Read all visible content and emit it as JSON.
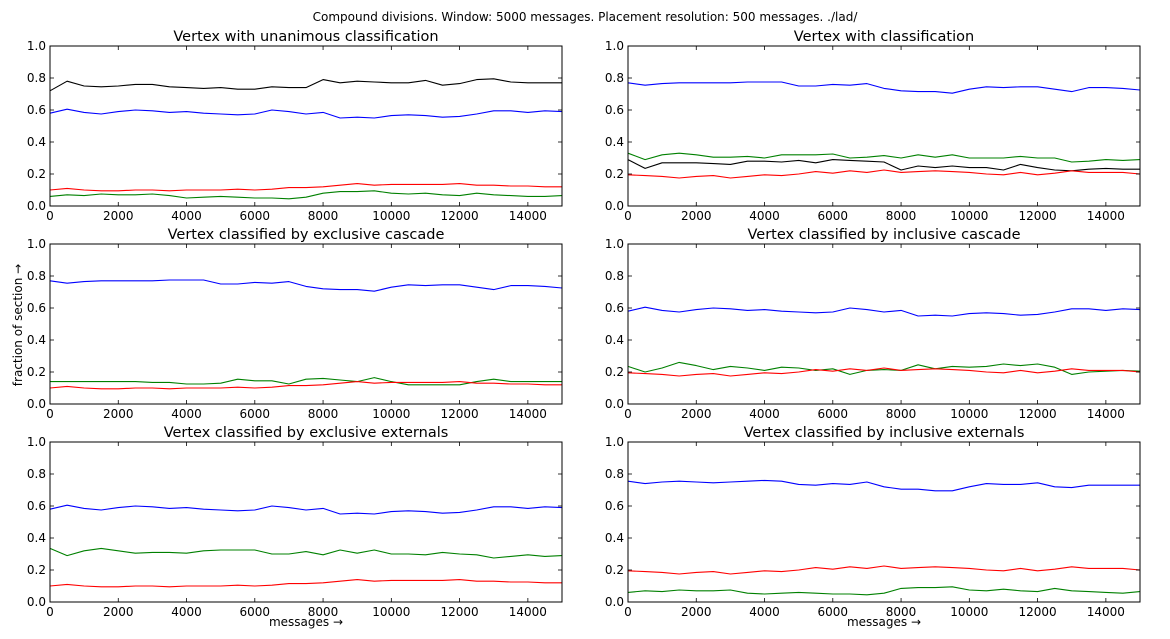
{
  "figure": {
    "suptitle": "Compound divisions. Window: 5000 messages. Placement resolution: 500 messages. ./lad/",
    "xlabel": "messages →",
    "ylabel": "fraction of section →"
  },
  "colors": {
    "blue": "#0000ff",
    "green": "#008000",
    "red": "#ff0000",
    "black": "#000000"
  },
  "chart_data": [
    {
      "type": "line",
      "title": "Vertex with unanimous classification",
      "xlim": [
        0,
        15000
      ],
      "ylim": [
        0,
        1.0
      ],
      "xticks": [
        0,
        2000,
        4000,
        6000,
        8000,
        10000,
        12000,
        14000
      ],
      "yticks": [
        0.0,
        0.2,
        0.4,
        0.6,
        0.8,
        1.0
      ],
      "x": [
        0,
        500,
        1000,
        1500,
        2000,
        2500,
        3000,
        3500,
        4000,
        4500,
        5000,
        5500,
        6000,
        6500,
        7000,
        7500,
        8000,
        8500,
        9000,
        9500,
        10000,
        10500,
        11000,
        11500,
        12000,
        12500,
        13000,
        13500,
        14000,
        14500,
        15000
      ],
      "series": [
        {
          "color": "#000000",
          "values": [
            0.72,
            0.78,
            0.75,
            0.745,
            0.75,
            0.76,
            0.76,
            0.745,
            0.74,
            0.735,
            0.74,
            0.73,
            0.73,
            0.745,
            0.74,
            0.74,
            0.79,
            0.77,
            0.78,
            0.775,
            0.77,
            0.77,
            0.785,
            0.755,
            0.765,
            0.79,
            0.795,
            0.775,
            0.77,
            0.77,
            0.77
          ]
        },
        {
          "color": "#0000ff",
          "values": [
            0.58,
            0.605,
            0.585,
            0.575,
            0.59,
            0.6,
            0.595,
            0.585,
            0.59,
            0.58,
            0.575,
            0.57,
            0.575,
            0.6,
            0.59,
            0.575,
            0.585,
            0.55,
            0.555,
            0.55,
            0.565,
            0.57,
            0.565,
            0.555,
            0.56,
            0.575,
            0.595,
            0.595,
            0.585,
            0.595,
            0.59
          ]
        },
        {
          "color": "#ff0000",
          "values": [
            0.1,
            0.11,
            0.1,
            0.095,
            0.095,
            0.1,
            0.1,
            0.095,
            0.1,
            0.1,
            0.1,
            0.105,
            0.1,
            0.105,
            0.115,
            0.115,
            0.12,
            0.13,
            0.14,
            0.13,
            0.135,
            0.135,
            0.135,
            0.135,
            0.14,
            0.13,
            0.13,
            0.125,
            0.125,
            0.12,
            0.12
          ]
        },
        {
          "color": "#008000",
          "values": [
            0.06,
            0.07,
            0.065,
            0.075,
            0.07,
            0.07,
            0.075,
            0.065,
            0.05,
            0.055,
            0.06,
            0.055,
            0.05,
            0.05,
            0.045,
            0.055,
            0.08,
            0.09,
            0.09,
            0.095,
            0.08,
            0.075,
            0.08,
            0.07,
            0.065,
            0.08,
            0.07,
            0.065,
            0.06,
            0.06,
            0.065
          ]
        }
      ]
    },
    {
      "type": "line",
      "title": "Vertex with classification",
      "xlim": [
        0,
        15000
      ],
      "ylim": [
        0,
        1.0
      ],
      "xticks": [
        0,
        2000,
        4000,
        6000,
        8000,
        10000,
        12000,
        14000
      ],
      "yticks": [
        0.0,
        0.2,
        0.4,
        0.6,
        0.8,
        1.0
      ],
      "x": [
        0,
        500,
        1000,
        1500,
        2000,
        2500,
        3000,
        3500,
        4000,
        4500,
        5000,
        5500,
        6000,
        6500,
        7000,
        7500,
        8000,
        8500,
        9000,
        9500,
        10000,
        10500,
        11000,
        11500,
        12000,
        12500,
        13000,
        13500,
        14000,
        14500,
        15000
      ],
      "series": [
        {
          "color": "#0000ff",
          "values": [
            0.77,
            0.755,
            0.765,
            0.77,
            0.77,
            0.77,
            0.77,
            0.775,
            0.775,
            0.775,
            0.75,
            0.75,
            0.76,
            0.755,
            0.765,
            0.735,
            0.72,
            0.715,
            0.715,
            0.705,
            0.73,
            0.745,
            0.74,
            0.745,
            0.745,
            0.73,
            0.715,
            0.74,
            0.74,
            0.735,
            0.725
          ]
        },
        {
          "color": "#008000",
          "values": [
            0.33,
            0.29,
            0.32,
            0.33,
            0.32,
            0.305,
            0.305,
            0.31,
            0.3,
            0.32,
            0.32,
            0.32,
            0.325,
            0.3,
            0.305,
            0.315,
            0.3,
            0.32,
            0.305,
            0.32,
            0.3,
            0.3,
            0.3,
            0.31,
            0.3,
            0.3,
            0.275,
            0.28,
            0.29,
            0.285,
            0.29
          ]
        },
        {
          "color": "#000000",
          "values": [
            0.29,
            0.235,
            0.27,
            0.27,
            0.27,
            0.265,
            0.26,
            0.28,
            0.28,
            0.275,
            0.285,
            0.27,
            0.29,
            0.285,
            0.28,
            0.275,
            0.225,
            0.25,
            0.24,
            0.25,
            0.24,
            0.24,
            0.225,
            0.26,
            0.24,
            0.225,
            0.22,
            0.23,
            0.235,
            0.23,
            0.23
          ]
        },
        {
          "color": "#ff0000",
          "values": [
            0.195,
            0.19,
            0.185,
            0.175,
            0.185,
            0.19,
            0.175,
            0.185,
            0.195,
            0.19,
            0.2,
            0.215,
            0.205,
            0.22,
            0.21,
            0.225,
            0.21,
            0.215,
            0.22,
            0.215,
            0.21,
            0.2,
            0.195,
            0.21,
            0.195,
            0.205,
            0.22,
            0.21,
            0.21,
            0.21,
            0.2
          ]
        }
      ]
    },
    {
      "type": "line",
      "title": "Vertex classified by exclusive cascade",
      "xlim": [
        0,
        15000
      ],
      "ylim": [
        0,
        1.0
      ],
      "xticks": [
        0,
        2000,
        4000,
        6000,
        8000,
        10000,
        12000,
        14000
      ],
      "yticks": [
        0.0,
        0.2,
        0.4,
        0.6,
        0.8,
        1.0
      ],
      "x": [
        0,
        500,
        1000,
        1500,
        2000,
        2500,
        3000,
        3500,
        4000,
        4500,
        5000,
        5500,
        6000,
        6500,
        7000,
        7500,
        8000,
        8500,
        9000,
        9500,
        10000,
        10500,
        11000,
        11500,
        12000,
        12500,
        13000,
        13500,
        14000,
        14500,
        15000
      ],
      "series": [
        {
          "color": "#0000ff",
          "values": [
            0.77,
            0.755,
            0.765,
            0.77,
            0.77,
            0.77,
            0.77,
            0.775,
            0.775,
            0.775,
            0.75,
            0.75,
            0.76,
            0.755,
            0.765,
            0.735,
            0.72,
            0.715,
            0.715,
            0.705,
            0.73,
            0.745,
            0.74,
            0.745,
            0.745,
            0.73,
            0.715,
            0.74,
            0.74,
            0.735,
            0.725
          ]
        },
        {
          "color": "#008000",
          "values": [
            0.14,
            0.14,
            0.14,
            0.14,
            0.14,
            0.14,
            0.135,
            0.135,
            0.125,
            0.125,
            0.13,
            0.155,
            0.145,
            0.145,
            0.125,
            0.155,
            0.16,
            0.15,
            0.14,
            0.165,
            0.14,
            0.12,
            0.12,
            0.12,
            0.12,
            0.14,
            0.155,
            0.14,
            0.14,
            0.14,
            0.14
          ]
        },
        {
          "color": "#ff0000",
          "values": [
            0.1,
            0.11,
            0.1,
            0.095,
            0.095,
            0.1,
            0.1,
            0.095,
            0.1,
            0.1,
            0.1,
            0.105,
            0.1,
            0.105,
            0.115,
            0.115,
            0.12,
            0.13,
            0.14,
            0.13,
            0.135,
            0.135,
            0.135,
            0.135,
            0.14,
            0.13,
            0.13,
            0.125,
            0.125,
            0.12,
            0.12
          ]
        }
      ]
    },
    {
      "type": "line",
      "title": "Vertex classified by inclusive cascade",
      "xlim": [
        0,
        15000
      ],
      "ylim": [
        0,
        1.0
      ],
      "xticks": [
        0,
        2000,
        4000,
        6000,
        8000,
        10000,
        12000,
        14000
      ],
      "yticks": [
        0.0,
        0.2,
        0.4,
        0.6,
        0.8,
        1.0
      ],
      "x": [
        0,
        500,
        1000,
        1500,
        2000,
        2500,
        3000,
        3500,
        4000,
        4500,
        5000,
        5500,
        6000,
        6500,
        7000,
        7500,
        8000,
        8500,
        9000,
        9500,
        10000,
        10500,
        11000,
        11500,
        12000,
        12500,
        13000,
        13500,
        14000,
        14500,
        15000
      ],
      "series": [
        {
          "color": "#0000ff",
          "values": [
            0.58,
            0.605,
            0.585,
            0.575,
            0.59,
            0.6,
            0.595,
            0.585,
            0.59,
            0.58,
            0.575,
            0.57,
            0.575,
            0.6,
            0.59,
            0.575,
            0.585,
            0.55,
            0.555,
            0.55,
            0.565,
            0.57,
            0.565,
            0.555,
            0.56,
            0.575,
            0.595,
            0.595,
            0.585,
            0.595,
            0.59
          ]
        },
        {
          "color": "#008000",
          "values": [
            0.235,
            0.2,
            0.225,
            0.26,
            0.24,
            0.215,
            0.235,
            0.225,
            0.21,
            0.23,
            0.225,
            0.21,
            0.22,
            0.185,
            0.21,
            0.215,
            0.21,
            0.245,
            0.22,
            0.235,
            0.23,
            0.235,
            0.25,
            0.24,
            0.25,
            0.23,
            0.185,
            0.2,
            0.205,
            0.21,
            0.205
          ]
        },
        {
          "color": "#ff0000",
          "values": [
            0.195,
            0.19,
            0.185,
            0.175,
            0.185,
            0.19,
            0.175,
            0.185,
            0.195,
            0.19,
            0.2,
            0.215,
            0.205,
            0.22,
            0.21,
            0.225,
            0.21,
            0.215,
            0.22,
            0.215,
            0.21,
            0.2,
            0.195,
            0.21,
            0.195,
            0.205,
            0.22,
            0.21,
            0.21,
            0.21,
            0.2
          ]
        }
      ]
    },
    {
      "type": "line",
      "title": "Vertex classified by exclusive externals",
      "xlim": [
        0,
        15000
      ],
      "ylim": [
        0,
        1.0
      ],
      "xticks": [
        0,
        2000,
        4000,
        6000,
        8000,
        10000,
        12000,
        14000
      ],
      "yticks": [
        0.0,
        0.2,
        0.4,
        0.6,
        0.8,
        1.0
      ],
      "x": [
        0,
        500,
        1000,
        1500,
        2000,
        2500,
        3000,
        3500,
        4000,
        4500,
        5000,
        5500,
        6000,
        6500,
        7000,
        7500,
        8000,
        8500,
        9000,
        9500,
        10000,
        10500,
        11000,
        11500,
        12000,
        12500,
        13000,
        13500,
        14000,
        14500,
        15000
      ],
      "series": [
        {
          "color": "#0000ff",
          "values": [
            0.58,
            0.605,
            0.585,
            0.575,
            0.59,
            0.6,
            0.595,
            0.585,
            0.59,
            0.58,
            0.575,
            0.57,
            0.575,
            0.6,
            0.59,
            0.575,
            0.585,
            0.55,
            0.555,
            0.55,
            0.565,
            0.57,
            0.565,
            0.555,
            0.56,
            0.575,
            0.595,
            0.595,
            0.585,
            0.595,
            0.59
          ]
        },
        {
          "color": "#008000",
          "values": [
            0.335,
            0.29,
            0.32,
            0.335,
            0.32,
            0.305,
            0.31,
            0.31,
            0.305,
            0.32,
            0.325,
            0.325,
            0.325,
            0.3,
            0.3,
            0.315,
            0.295,
            0.325,
            0.305,
            0.325,
            0.3,
            0.3,
            0.295,
            0.31,
            0.3,
            0.295,
            0.275,
            0.285,
            0.295,
            0.285,
            0.29
          ]
        },
        {
          "color": "#ff0000",
          "values": [
            0.1,
            0.11,
            0.1,
            0.095,
            0.095,
            0.1,
            0.1,
            0.095,
            0.1,
            0.1,
            0.1,
            0.105,
            0.1,
            0.105,
            0.115,
            0.115,
            0.12,
            0.13,
            0.14,
            0.13,
            0.135,
            0.135,
            0.135,
            0.135,
            0.14,
            0.13,
            0.13,
            0.125,
            0.125,
            0.12,
            0.12
          ]
        }
      ]
    },
    {
      "type": "line",
      "title": "Vertex classified by inclusive externals",
      "xlim": [
        0,
        15000
      ],
      "ylim": [
        0,
        1.0
      ],
      "xticks": [
        0,
        2000,
        4000,
        6000,
        8000,
        10000,
        12000,
        14000
      ],
      "yticks": [
        0.0,
        0.2,
        0.4,
        0.6,
        0.8,
        1.0
      ],
      "x": [
        0,
        500,
        1000,
        1500,
        2000,
        2500,
        3000,
        3500,
        4000,
        4500,
        5000,
        5500,
        6000,
        6500,
        7000,
        7500,
        8000,
        8500,
        9000,
        9500,
        10000,
        10500,
        11000,
        11500,
        12000,
        12500,
        13000,
        13500,
        14000,
        14500,
        15000
      ],
      "series": [
        {
          "color": "#0000ff",
          "values": [
            0.755,
            0.74,
            0.75,
            0.755,
            0.75,
            0.745,
            0.75,
            0.755,
            0.76,
            0.755,
            0.735,
            0.73,
            0.74,
            0.735,
            0.75,
            0.72,
            0.705,
            0.705,
            0.695,
            0.695,
            0.72,
            0.74,
            0.735,
            0.735,
            0.745,
            0.72,
            0.715,
            0.73,
            0.73,
            0.73,
            0.73
          ]
        },
        {
          "color": "#ff0000",
          "values": [
            0.195,
            0.19,
            0.185,
            0.175,
            0.185,
            0.19,
            0.175,
            0.185,
            0.195,
            0.19,
            0.2,
            0.215,
            0.205,
            0.22,
            0.21,
            0.225,
            0.21,
            0.215,
            0.22,
            0.215,
            0.21,
            0.2,
            0.195,
            0.21,
            0.195,
            0.205,
            0.22,
            0.21,
            0.21,
            0.21,
            0.2
          ]
        },
        {
          "color": "#008000",
          "values": [
            0.06,
            0.07,
            0.065,
            0.075,
            0.07,
            0.07,
            0.075,
            0.055,
            0.05,
            0.055,
            0.06,
            0.055,
            0.05,
            0.05,
            0.045,
            0.055,
            0.085,
            0.09,
            0.09,
            0.095,
            0.075,
            0.07,
            0.08,
            0.07,
            0.065,
            0.085,
            0.07,
            0.065,
            0.06,
            0.055,
            0.065
          ]
        }
      ]
    }
  ]
}
